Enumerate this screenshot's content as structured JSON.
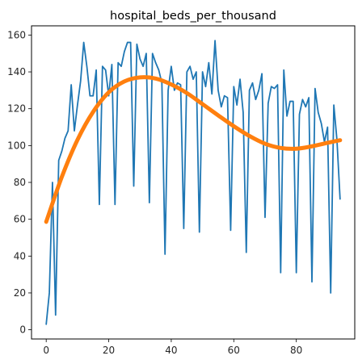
{
  "chart_data": {
    "type": "line",
    "title": "hospital_beds_per_thousand",
    "xlabel": "",
    "ylabel": "",
    "xlim": [
      -4.7,
      98.7
    ],
    "ylim": [
      -5,
      165
    ],
    "xticks": [
      0,
      20,
      40,
      60,
      80
    ],
    "yticks": [
      0,
      20,
      40,
      60,
      80,
      100,
      120,
      140,
      160
    ],
    "grid": false,
    "legend": "none",
    "series": [
      {
        "color": "#1f77b4",
        "x": [
          0,
          1,
          2,
          3,
          4,
          5,
          6,
          7,
          8,
          9,
          10,
          11,
          12,
          13,
          14,
          15,
          16,
          17,
          18,
          19,
          20,
          21,
          22,
          23,
          24,
          25,
          26,
          27,
          28,
          29,
          30,
          31,
          32,
          33,
          34,
          35,
          36,
          37,
          38,
          39,
          40,
          41,
          42,
          43,
          44,
          45,
          46,
          47,
          48,
          49,
          50,
          51,
          52,
          53,
          54,
          55,
          56,
          57,
          58,
          59,
          60,
          61,
          62,
          63,
          64,
          65,
          66,
          67,
          68,
          69,
          70,
          71,
          72,
          73,
          74,
          75,
          76,
          77,
          78,
          79,
          80,
          81,
          82,
          83,
          84,
          85,
          86,
          87,
          88,
          89,
          90,
          91,
          92,
          93,
          94
        ],
        "y": [
          3,
          20,
          80,
          8,
          92,
          97,
          104,
          108,
          133,
          108,
          122,
          135,
          156,
          143,
          127,
          127,
          141,
          68,
          143,
          141,
          127,
          144,
          68,
          145,
          143,
          151,
          156,
          156,
          78,
          155,
          147,
          143,
          150,
          69,
          150,
          145,
          141,
          134,
          41,
          130,
          143,
          130,
          134,
          133,
          55,
          140,
          143,
          136,
          140,
          53,
          140,
          132,
          145,
          128,
          157,
          130,
          121,
          127,
          126,
          54,
          132,
          122,
          136,
          118,
          42,
          130,
          134,
          125,
          130,
          139,
          61,
          123,
          132,
          131,
          133,
          31,
          141,
          116,
          124,
          124,
          31,
          117,
          125,
          121,
          126,
          26,
          131,
          118,
          112,
          102,
          110,
          20,
          122,
          103,
          71
        ]
      },
      {
        "color": "#ff7f0e",
        "x": [
          0,
          5,
          10,
          15,
          20,
          25,
          30,
          35,
          40,
          45,
          50,
          55,
          60,
          65,
          70,
          75,
          80,
          85,
          90,
          94
        ],
        "y": [
          58.6,
          83,
          103.1,
          118.3,
          128.9,
          134.8,
          137,
          136.4,
          133.2,
          128.5,
          122.5,
          116.4,
          110.5,
          105.2,
          101,
          98.7,
          98.3,
          99.6,
          101.5,
          102.9
        ]
      }
    ]
  }
}
